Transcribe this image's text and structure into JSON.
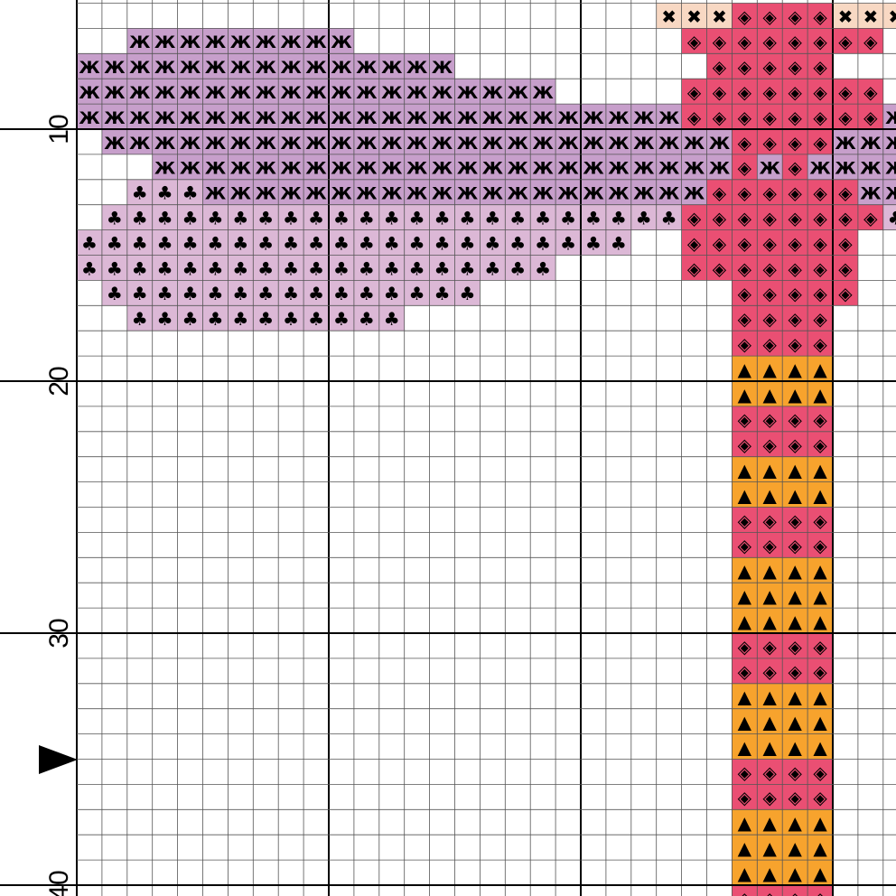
{
  "palette": {
    "lavender": {
      "color": "#c79fcb",
      "symbol": "Ж"
    },
    "lightpink": {
      "color": "#dcb8d6",
      "symbol": "♣"
    },
    "rose": {
      "color": "#ea4f73",
      "symbol": "◈"
    },
    "orange": {
      "color": "#f7a32d",
      "symbol": "▲"
    },
    "peach": {
      "color": "#f8d8c3",
      "symbol": "✖"
    }
  },
  "row_labels": [
    "10",
    "20",
    "30",
    "40"
  ],
  "row_marker": "▶"
}
